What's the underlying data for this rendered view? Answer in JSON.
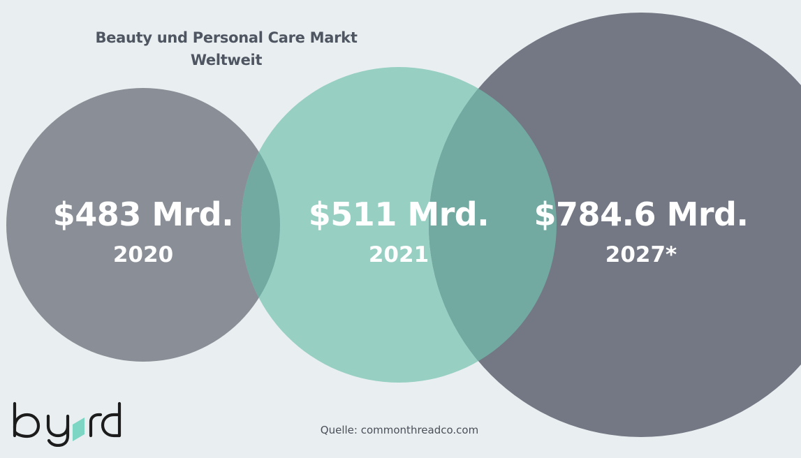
{
  "title": {
    "line1": "Beauty und Personal Care Markt",
    "line2": "Weltweit"
  },
  "source": "Quelle: commonthreadco.com",
  "logo": {
    "text": "byrd",
    "accent_color": "#7dd5c4"
  },
  "colors": {
    "background": "#e9eff1",
    "circle_2020": "#8a8f97",
    "circle_2021": "#97cfc3",
    "circle_2027": "#737884",
    "overlap": "#72aaa2",
    "text_light": "#ffffff",
    "text_dark": "#4f5662"
  },
  "chart_data": {
    "type": "bubble",
    "title": "Beauty und Personal Care Markt Weltweit",
    "unit": "Mrd. USD",
    "points": [
      {
        "year": "2020",
        "value": 483,
        "label": "$483 Mrd."
      },
      {
        "year": "2021",
        "value": 511,
        "label": "$511 Mrd."
      },
      {
        "year": "2027*",
        "value": 784.6,
        "label": "$784.6 Mrd."
      }
    ]
  }
}
